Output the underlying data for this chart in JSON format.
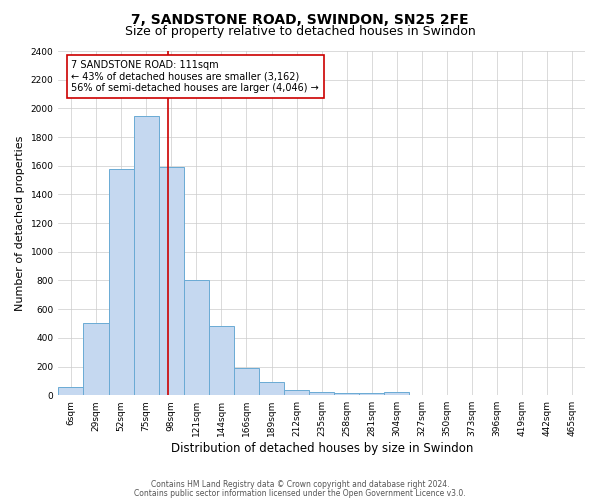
{
  "title": "7, SANDSTONE ROAD, SWINDON, SN25 2FE",
  "subtitle": "Size of property relative to detached houses in Swindon",
  "xlabel": "Distribution of detached houses by size in Swindon",
  "ylabel": "Number of detached properties",
  "categories": [
    "6sqm",
    "29sqm",
    "52sqm",
    "75sqm",
    "98sqm",
    "121sqm",
    "144sqm",
    "166sqm",
    "189sqm",
    "212sqm",
    "235sqm",
    "258sqm",
    "281sqm",
    "304sqm",
    "327sqm",
    "350sqm",
    "373sqm",
    "396sqm",
    "419sqm",
    "442sqm",
    "465sqm"
  ],
  "values": [
    60,
    500,
    1580,
    1950,
    1590,
    800,
    485,
    190,
    90,
    35,
    25,
    15,
    15,
    20,
    0,
    0,
    0,
    0,
    0,
    0,
    0
  ],
  "bar_color": "#c5d8f0",
  "bar_edge_color": "#6aaad4",
  "vline_x_data": 3.87,
  "vline_color": "#cc0000",
  "annotation_line1": "7 SANDSTONE ROAD: 111sqm",
  "annotation_line2": "← 43% of detached houses are smaller (3,162)",
  "annotation_line3": "56% of semi-detached houses are larger (4,046) →",
  "annotation_box_color": "#ffffff",
  "annotation_box_edge": "#cc0000",
  "ylim": [
    0,
    2400
  ],
  "yticks": [
    0,
    200,
    400,
    600,
    800,
    1000,
    1200,
    1400,
    1600,
    1800,
    2000,
    2200,
    2400
  ],
  "background_color": "#ffffff",
  "grid_color": "#cccccc",
  "footer1": "Contains HM Land Registry data © Crown copyright and database right 2024.",
  "footer2": "Contains public sector information licensed under the Open Government Licence v3.0.",
  "title_fontsize": 10,
  "subtitle_fontsize": 9,
  "xlabel_fontsize": 8.5,
  "ylabel_fontsize": 8,
  "tick_fontsize": 6.5,
  "annot_fontsize": 7,
  "footer_fontsize": 5.5
}
